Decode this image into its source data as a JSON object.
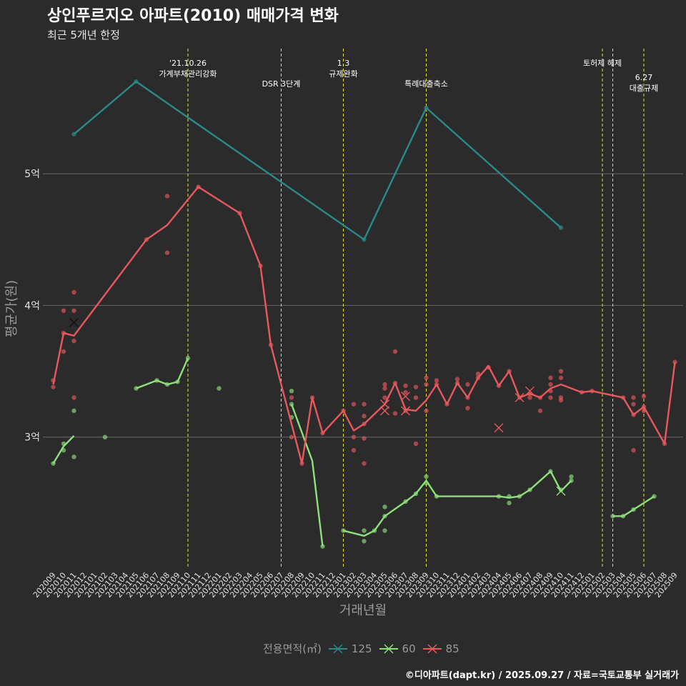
{
  "title": "상인푸르지오 아파트(2010) 매매가격 변화",
  "subtitle": "최근 5개년 한정",
  "caption": "©디아파트(dapt.kr) / 2025.09.27 / 자료=국토교통부 실거래가",
  "legend": {
    "title": "전용면적(㎡)",
    "items": [
      {
        "label": "125",
        "color": "#2a8a8a"
      },
      {
        "label": "60",
        "color": "#8ee07a"
      },
      {
        "label": "85",
        "color": "#e8585c"
      }
    ]
  },
  "chart_data": {
    "type": "line",
    "title": "상인푸르지오 아파트(2010) 매매가격 변화",
    "xlabel": "거래년월",
    "ylabel": "평균가(원)",
    "ylim": [
      2.0,
      5.95
    ],
    "y_ticks": [
      {
        "v": 3,
        "label": "3억"
      },
      {
        "v": 4,
        "label": "4억"
      },
      {
        "v": 5,
        "label": "5억"
      }
    ],
    "categories": [
      "202009",
      "202010",
      "202011",
      "202012",
      "202101",
      "202102",
      "202103",
      "202104",
      "202105",
      "202106",
      "202107",
      "202108",
      "202109",
      "202110",
      "202111",
      "202112",
      "202201",
      "202202",
      "202203",
      "202204",
      "202205",
      "202206",
      "202207",
      "202208",
      "202209",
      "202210",
      "202211",
      "202212",
      "202301",
      "202302",
      "202303",
      "202304",
      "202305",
      "202306",
      "202307",
      "202308",
      "202309",
      "202310",
      "202311",
      "202312",
      "202401",
      "202402",
      "202403",
      "202404",
      "202405",
      "202406",
      "202407",
      "202408",
      "202409",
      "202410",
      "202411",
      "202412",
      "202501",
      "202502",
      "202503",
      "202504",
      "202505",
      "202506",
      "202507",
      "202508",
      "202509"
    ],
    "events": [
      {
        "idx": 13,
        "label": "'21.10.26\n가계부채관리강화",
        "row": 0
      },
      {
        "idx": 22,
        "label": "DSR 3단계",
        "row": 1
      },
      {
        "idx": 28,
        "label": "1.3\n규제완화",
        "row": 0
      },
      {
        "idx": 36,
        "label": "특례대출축소",
        "row": 1
      },
      {
        "idx": 53,
        "label": "토허제 해제",
        "row": 0
      },
      {
        "idx": 54,
        "label": "",
        "row": 0
      },
      {
        "idx": 57,
        "label": "6.27\n대출규제",
        "row": 2
      }
    ],
    "series": [
      {
        "name": "125",
        "color": "#2a8a8a",
        "line": [
          [
            2,
            5.3
          ],
          [
            8,
            5.7
          ],
          [
            30,
            4.5
          ],
          [
            36,
            5.5
          ],
          [
            49,
            4.59
          ]
        ],
        "points": [
          [
            2,
            5.3
          ],
          [
            8,
            5.7
          ],
          [
            30,
            4.5
          ],
          [
            36,
            5.5
          ],
          [
            49,
            4.59
          ]
        ],
        "crosses": []
      },
      {
        "name": "60",
        "color": "#8ee07a",
        "line_segments": [
          [
            [
              0,
              2.8
            ],
            [
              1,
              2.93
            ],
            [
              2,
              3.01
            ]
          ],
          [
            [
              8,
              3.37
            ],
            [
              10,
              3.43
            ],
            [
              11,
              3.4
            ],
            [
              12,
              3.42
            ],
            [
              13,
              3.6
            ]
          ],
          [
            [
              23,
              3.25
            ],
            [
              25,
              2.82
            ],
            [
              26,
              2.17
            ]
          ],
          [
            [
              28,
              2.29
            ],
            [
              30,
              2.25
            ],
            [
              31,
              2.29
            ],
            [
              32,
              2.4
            ],
            [
              34,
              2.51
            ],
            [
              35,
              2.57
            ],
            [
              36,
              2.67
            ],
            [
              37,
              2.55
            ],
            [
              43,
              2.55
            ],
            [
              44,
              2.54
            ],
            [
              45,
              2.55
            ],
            [
              46,
              2.6
            ],
            [
              48,
              2.74
            ],
            [
              49,
              2.59
            ],
            [
              50,
              2.67
            ]
          ],
          [
            [
              54,
              2.4
            ],
            [
              55,
              2.4
            ],
            [
              56,
              2.45
            ],
            [
              58,
              2.55
            ]
          ]
        ],
        "points": [
          [
            0,
            2.8
          ],
          [
            1,
            2.9
          ],
          [
            1,
            2.95
          ],
          [
            2,
            3.2
          ],
          [
            2,
            2.85
          ],
          [
            5,
            3.0
          ],
          [
            8,
            3.37
          ],
          [
            10,
            3.43
          ],
          [
            11,
            3.4
          ],
          [
            12,
            3.42
          ],
          [
            13,
            3.6
          ],
          [
            16,
            3.37
          ],
          [
            23,
            3.35
          ],
          [
            23,
            3.15
          ],
          [
            23,
            3.25
          ],
          [
            26,
            2.17
          ],
          [
            28,
            2.29
          ],
          [
            30,
            2.21
          ],
          [
            30,
            2.29
          ],
          [
            31,
            2.29
          ],
          [
            32,
            2.29
          ],
          [
            32,
            2.4
          ],
          [
            32,
            2.47
          ],
          [
            34,
            2.51
          ],
          [
            35,
            2.57
          ],
          [
            36,
            2.7
          ],
          [
            36,
            2.65
          ],
          [
            37,
            2.55
          ],
          [
            43,
            2.55
          ],
          [
            44,
            2.5
          ],
          [
            44,
            2.55
          ],
          [
            45,
            2.55
          ],
          [
            46,
            2.6
          ],
          [
            48,
            2.74
          ],
          [
            49,
            2.6
          ],
          [
            50,
            2.7
          ],
          [
            50,
            2.67
          ],
          [
            54,
            2.4
          ],
          [
            55,
            2.4
          ],
          [
            56,
            2.45
          ],
          [
            58,
            2.55
          ]
        ],
        "crosses": [
          [
            49,
            2.59
          ]
        ]
      },
      {
        "name": "85",
        "color": "#e8585c",
        "line": [
          [
            0,
            3.4
          ],
          [
            1,
            3.79
          ],
          [
            2,
            3.77
          ],
          [
            9,
            4.5
          ],
          [
            11,
            4.61
          ],
          [
            14,
            4.9
          ],
          [
            18,
            4.7
          ],
          [
            20,
            4.3
          ],
          [
            21,
            3.7
          ],
          [
            24,
            2.8
          ],
          [
            25,
            3.3
          ],
          [
            26,
            3.03
          ],
          [
            28,
            3.2
          ],
          [
            29,
            3.05
          ],
          [
            30,
            3.1
          ],
          [
            32,
            3.25
          ],
          [
            33,
            3.41
          ],
          [
            34,
            3.21
          ],
          [
            35,
            3.2
          ],
          [
            36,
            3.28
          ],
          [
            37,
            3.4
          ],
          [
            38,
            3.25
          ],
          [
            39,
            3.41
          ],
          [
            40,
            3.3
          ],
          [
            41,
            3.45
          ],
          [
            42,
            3.54
          ],
          [
            43,
            3.39
          ],
          [
            44,
            3.5
          ],
          [
            45,
            3.3
          ],
          [
            46,
            3.33
          ],
          [
            47,
            3.3
          ],
          [
            48,
            3.37
          ],
          [
            49,
            3.4
          ],
          [
            51,
            3.34
          ],
          [
            52,
            3.35
          ],
          [
            55,
            3.3
          ],
          [
            56,
            3.17
          ],
          [
            57,
            3.23
          ],
          [
            59,
            2.95
          ],
          [
            60,
            3.57
          ]
        ],
        "points": [
          [
            0,
            3.43
          ],
          [
            0,
            3.38
          ],
          [
            1,
            3.96
          ],
          [
            1,
            3.65
          ],
          [
            1,
            3.79
          ],
          [
            2,
            4.1
          ],
          [
            2,
            3.96
          ],
          [
            2,
            3.73
          ],
          [
            2,
            3.3
          ],
          [
            9,
            4.5
          ],
          [
            11,
            4.4
          ],
          [
            11,
            4.83
          ],
          [
            14,
            4.9
          ],
          [
            18,
            4.7
          ],
          [
            20,
            4.3
          ],
          [
            21,
            3.7
          ],
          [
            23,
            3.0
          ],
          [
            23,
            3.3
          ],
          [
            24,
            2.8
          ],
          [
            25,
            3.3
          ],
          [
            26,
            3.03
          ],
          [
            28,
            3.2
          ],
          [
            29,
            3.25
          ],
          [
            29,
            3.0
          ],
          [
            29,
            2.9
          ],
          [
            30,
            3.25
          ],
          [
            30,
            3.16
          ],
          [
            30,
            3.1
          ],
          [
            30,
            2.99
          ],
          [
            30,
            2.8
          ],
          [
            32,
            3.4
          ],
          [
            32,
            3.37
          ],
          [
            32,
            3.3
          ],
          [
            33,
            3.65
          ],
          [
            33,
            3.41
          ],
          [
            33,
            3.18
          ],
          [
            34,
            3.39
          ],
          [
            34,
            3.34
          ],
          [
            34,
            3.2
          ],
          [
            35,
            3.38
          ],
          [
            35,
            3.3
          ],
          [
            35,
            2.95
          ],
          [
            36,
            3.45
          ],
          [
            36,
            3.4
          ],
          [
            36,
            3.2
          ],
          [
            37,
            3.43
          ],
          [
            37,
            3.4
          ],
          [
            38,
            3.25
          ],
          [
            39,
            3.44
          ],
          [
            39,
            3.41
          ],
          [
            40,
            3.4
          ],
          [
            40,
            3.3
          ],
          [
            40,
            3.22
          ],
          [
            41,
            3.48
          ],
          [
            41,
            3.45
          ],
          [
            42,
            3.53
          ],
          [
            43,
            3.39
          ],
          [
            44,
            3.5
          ],
          [
            45,
            3.3
          ],
          [
            46,
            3.33
          ],
          [
            46,
            3.3
          ],
          [
            47,
            3.2
          ],
          [
            47,
            3.3
          ],
          [
            48,
            3.45
          ],
          [
            48,
            3.4
          ],
          [
            48,
            3.35
          ],
          [
            48,
            3.3
          ],
          [
            49,
            3.5
          ],
          [
            49,
            3.45
          ],
          [
            49,
            3.3
          ],
          [
            49,
            3.28
          ],
          [
            51,
            3.34
          ],
          [
            52,
            3.35
          ],
          [
            55,
            3.3
          ],
          [
            56,
            3.3
          ],
          [
            56,
            3.25
          ],
          [
            56,
            3.17
          ],
          [
            56,
            2.9
          ],
          [
            57,
            3.31
          ],
          [
            57,
            3.23
          ],
          [
            57,
            3.2
          ],
          [
            59,
            2.95
          ],
          [
            60,
            3.57
          ]
        ],
        "crosses": [
          [
            2,
            3.87
          ],
          [
            32,
            3.25
          ],
          [
            32,
            3.2
          ],
          [
            34,
            3.2
          ],
          [
            34,
            3.31
          ],
          [
            43,
            3.07
          ],
          [
            45,
            3.3
          ],
          [
            46,
            3.35
          ]
        ]
      }
    ]
  }
}
